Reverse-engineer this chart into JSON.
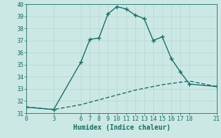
{
  "title": "",
  "xlabel": "Humidex (Indice chaleur)",
  "background_color": "#cce8e5",
  "grid_color": "#b8d8d4",
  "line_color": "#1a6b65",
  "xlim": [
    0,
    21
  ],
  "ylim": [
    31,
    40
  ],
  "xticks": [
    0,
    3,
    6,
    7,
    8,
    9,
    10,
    11,
    12,
    13,
    14,
    15,
    16,
    17,
    18,
    21
  ],
  "yticks": [
    31,
    32,
    33,
    34,
    35,
    36,
    37,
    38,
    39,
    40
  ],
  "series1_x": [
    0,
    3,
    6,
    7,
    8,
    9,
    10,
    11,
    12,
    13,
    14,
    15,
    16,
    17,
    18,
    21
  ],
  "series1_y": [
    31.5,
    31.3,
    35.2,
    37.1,
    37.2,
    39.2,
    39.8,
    39.6,
    39.1,
    38.8,
    37.0,
    37.3,
    35.5,
    34.4,
    33.4,
    33.2
  ],
  "series2_x": [
    0,
    3,
    6,
    7,
    8,
    9,
    10,
    11,
    12,
    13,
    14,
    15,
    16,
    17,
    18,
    21
  ],
  "series2_y": [
    31.5,
    31.3,
    31.7,
    31.9,
    32.1,
    32.3,
    32.5,
    32.7,
    32.9,
    33.05,
    33.2,
    33.35,
    33.45,
    33.55,
    33.65,
    33.2
  ],
  "marker": "+",
  "markersize": 4,
  "linewidth": 1.0,
  "xlabel_fontsize": 7,
  "tick_fontsize": 6
}
